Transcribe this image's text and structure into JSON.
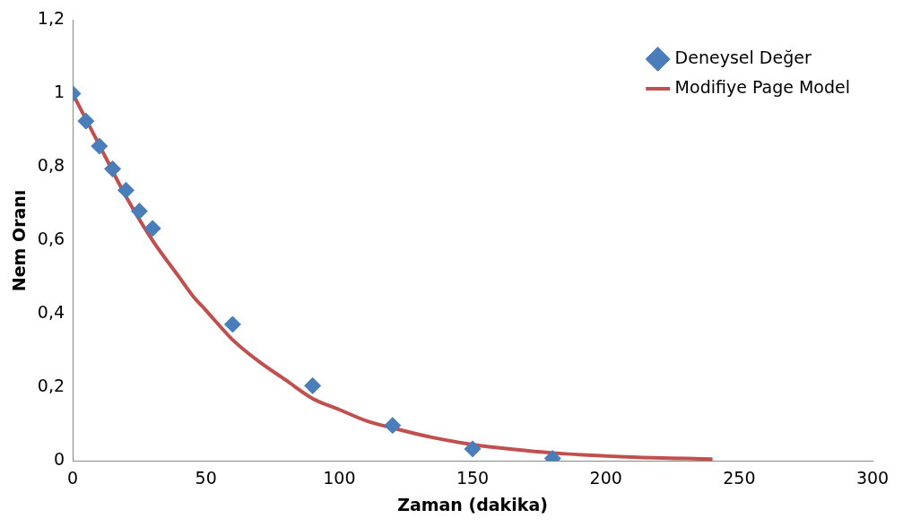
{
  "chart_data": {
    "type": "scatter",
    "xlabel": "Zaman (dakika)",
    "ylabel": "Nem Oranı",
    "xlim": [
      0,
      300
    ],
    "xticks": [
      0,
      50,
      100,
      150,
      200,
      250,
      300
    ],
    "ylim": [
      0,
      1.2
    ],
    "yticks": [
      0,
      {
        "value": 0.2,
        "label": "0,2"
      },
      {
        "value": 0.4,
        "label": "0,4"
      },
      {
        "value": 0.6,
        "label": "0,6"
      },
      {
        "value": 0.8,
        "label": "0,8"
      },
      1,
      {
        "value": 1.2,
        "label": "1,2"
      }
    ],
    "grid": false,
    "legend": "top right",
    "marker": "diamond",
    "series": [
      {
        "name": "Deneysel Değer",
        "type": "scatter",
        "color": "#4a7ebb",
        "x": [
          0,
          5,
          10,
          15,
          20,
          25,
          30,
          60,
          90,
          120,
          150,
          180
        ],
        "values": [
          1,
          0.925,
          0.857,
          0.795,
          0.737,
          0.68,
          0.633,
          0.372,
          0.205,
          0.097,
          0.033,
          0.007
        ]
      },
      {
        "name": "Modifiye Page Model",
        "type": "line",
        "color": "#c0504d",
        "marker": "none",
        "line_style": "solid",
        "x": [
          0,
          10,
          20,
          30,
          40,
          45,
          50,
          60,
          70,
          80,
          90,
          100,
          110,
          120,
          135,
          150,
          165,
          180,
          210,
          240
        ],
        "values": [
          1,
          0.86,
          0.72,
          0.6,
          0.5,
          0.45,
          0.41,
          0.33,
          0.27,
          0.22,
          0.17,
          0.14,
          0.11,
          0.09,
          0.064,
          0.045,
          0.032,
          0.022,
          0.011,
          0.005
        ]
      }
    ]
  }
}
